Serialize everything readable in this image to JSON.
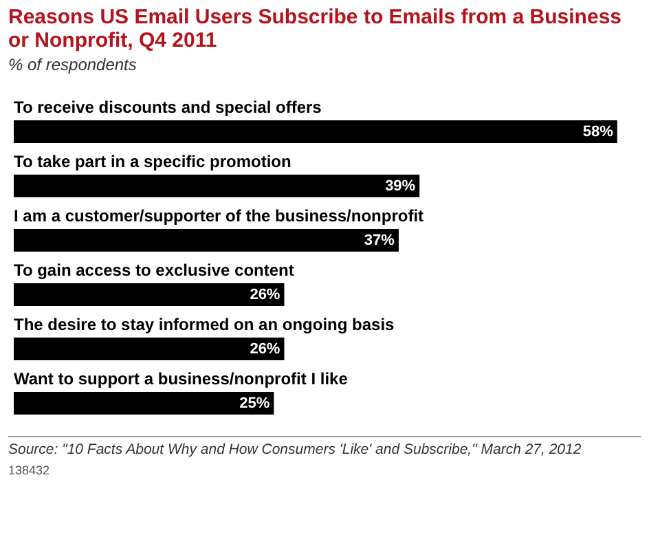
{
  "chart_data": {
    "type": "bar",
    "orientation": "horizontal",
    "title": "Reasons US Email Users Subscribe to Emails from a Business or Nonprofit, Q4 2011",
    "subtitle": "% of respondents",
    "categories": [
      "To receive discounts and special offers",
      "To take part in a specific promotion",
      "I am a customer/supporter of the business/nonprofit",
      "To gain access to exclusive content",
      "The desire to stay informed on an ongoing basis",
      "Want to support a business/nonprofit I like"
    ],
    "values": [
      58,
      39,
      37,
      26,
      26,
      25
    ],
    "color": "#000000",
    "value_labels": [
      "58%",
      "39%",
      "37%",
      "26%",
      "26%",
      "25%"
    ],
    "legend": false,
    "annotations": [
      "Source: \"10 Facts About Why and How Consumers 'Like' and Subscribe,\" March 27, 2012",
      "138432"
    ]
  }
}
